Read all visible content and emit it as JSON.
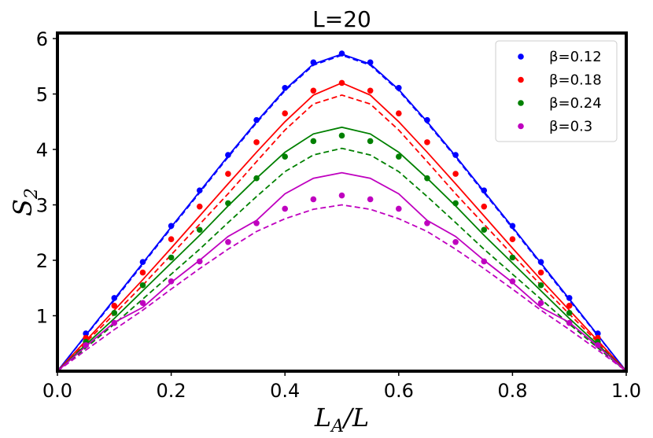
{
  "chart_data": {
    "type": "line",
    "title": "L=20",
    "xlabel": "L_A/L",
    "ylabel": "S_2",
    "xlim": [
      0.0,
      1.0
    ],
    "ylim": [
      0.0,
      6.1
    ],
    "x_ticks": [
      "0.0",
      "0.2",
      "0.4",
      "0.6",
      "0.8",
      "1.0"
    ],
    "y_ticks": [
      "1",
      "2",
      "3",
      "4",
      "5",
      "6"
    ],
    "x": [
      0,
      0.05,
      0.1,
      0.15,
      0.2,
      0.25,
      0.3,
      0.35,
      0.4,
      0.45,
      0.5,
      0.55,
      0.6,
      0.65,
      0.7,
      0.75,
      0.8,
      0.85,
      0.9,
      0.95,
      1.0
    ],
    "legend_position": "top-right",
    "series": [
      {
        "name": "β=0.12",
        "color": "#0000ff",
        "points": [
          0,
          0.68,
          1.32,
          1.97,
          2.62,
          3.26,
          3.9,
          4.53,
          5.11,
          5.57,
          5.73,
          5.57,
          5.11,
          4.53,
          3.9,
          3.26,
          2.62,
          1.97,
          1.32,
          0.68,
          0
        ],
        "solid": [
          0,
          0.65,
          1.3,
          1.95,
          2.6,
          3.24,
          3.88,
          4.5,
          5.08,
          5.54,
          5.72,
          5.54,
          5.08,
          4.5,
          3.88,
          3.24,
          2.6,
          1.95,
          1.3,
          0.65,
          0
        ],
        "dashed": [
          0,
          0.64,
          1.28,
          1.93,
          2.58,
          3.22,
          3.86,
          4.48,
          5.06,
          5.52,
          5.7,
          5.52,
          5.06,
          4.48,
          3.86,
          3.22,
          2.58,
          1.93,
          1.28,
          0.64,
          0
        ]
      },
      {
        "name": "β=0.18",
        "color": "#ff0000",
        "points": [
          0,
          0.6,
          1.18,
          1.78,
          2.38,
          2.97,
          3.56,
          4.13,
          4.65,
          5.06,
          5.2,
          5.06,
          4.65,
          4.13,
          3.56,
          2.97,
          2.38,
          1.78,
          1.18,
          0.6,
          0
        ],
        "solid": [
          0,
          0.55,
          1.1,
          1.65,
          2.22,
          2.8,
          3.38,
          3.95,
          4.5,
          4.98,
          5.2,
          4.98,
          4.5,
          3.95,
          3.38,
          2.8,
          2.22,
          1.65,
          1.1,
          0.55,
          0
        ],
        "dashed": [
          0,
          0.52,
          1.03,
          1.55,
          2.1,
          2.65,
          3.2,
          3.78,
          4.35,
          4.82,
          4.98,
          4.82,
          4.35,
          3.78,
          3.2,
          2.65,
          2.1,
          1.55,
          1.03,
          0.52,
          0
        ]
      },
      {
        "name": "β=0.24",
        "color": "#008000",
        "points": [
          0,
          0.53,
          1.05,
          1.55,
          2.05,
          2.55,
          3.03,
          3.48,
          3.87,
          4.15,
          4.25,
          4.15,
          3.87,
          3.48,
          3.03,
          2.55,
          2.05,
          1.55,
          1.05,
          0.53,
          0
        ],
        "solid": [
          0,
          0.48,
          0.95,
          1.45,
          1.95,
          2.45,
          2.98,
          3.48,
          3.95,
          4.28,
          4.4,
          4.28,
          3.95,
          3.48,
          2.98,
          2.45,
          1.95,
          1.45,
          0.95,
          0.48,
          0
        ],
        "dashed": [
          0,
          0.42,
          0.85,
          1.3,
          1.75,
          2.2,
          2.68,
          3.15,
          3.6,
          3.9,
          4.02,
          3.9,
          3.6,
          3.15,
          2.68,
          2.2,
          1.75,
          1.3,
          0.85,
          0.42,
          0
        ]
      },
      {
        "name": "β=0.3",
        "color": "#bf00bf",
        "points": [
          0,
          0.47,
          0.87,
          1.23,
          1.62,
          1.98,
          2.33,
          2.67,
          2.93,
          3.1,
          3.17,
          3.1,
          2.93,
          2.67,
          2.33,
          1.98,
          1.62,
          1.23,
          0.87,
          0.47,
          0
        ],
        "solid": [
          0,
          0.45,
          0.88,
          1.15,
          1.6,
          2.0,
          2.43,
          2.72,
          3.2,
          3.48,
          3.58,
          3.48,
          3.2,
          2.72,
          2.43,
          2.0,
          1.6,
          1.15,
          0.88,
          0.45,
          0
        ],
        "dashed": [
          0,
          0.38,
          0.75,
          1.1,
          1.48,
          1.85,
          2.2,
          2.52,
          2.75,
          2.92,
          3.0,
          2.92,
          2.75,
          2.52,
          2.2,
          1.85,
          1.48,
          1.1,
          0.75,
          0.38,
          0
        ]
      }
    ]
  }
}
